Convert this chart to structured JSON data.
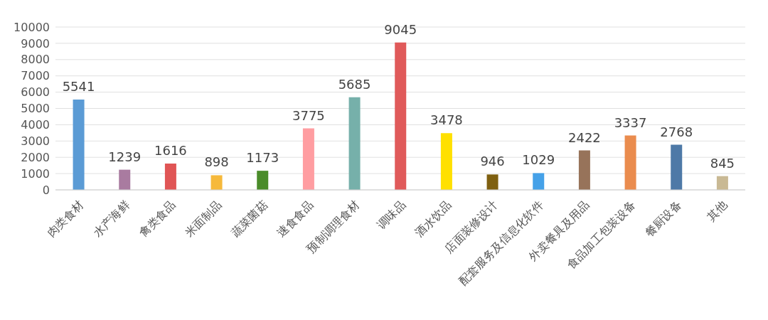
{
  "chart_data": {
    "type": "bar",
    "categories": [
      "肉类食材",
      "水产海鲜",
      "禽类食品",
      "米面制品",
      "蔬菜菌菇",
      "速食食品",
      "预制调理食材",
      "调味品",
      "酒水饮品",
      "店面装修设计",
      "配套服务及信息化软件",
      "外卖餐具及用品",
      "食品加工包装设备",
      "餐厨设备",
      "其他"
    ],
    "values": [
      5541,
      1239,
      1616,
      898,
      1173,
      3775,
      5685,
      9045,
      3478,
      946,
      1029,
      2422,
      3337,
      2768,
      845
    ],
    "colors": [
      "#5b9bd5",
      "#a97ba0",
      "#e05555",
      "#f6b93b",
      "#4a8c2a",
      "#ff9da1",
      "#76b0aa",
      "#e05a5a",
      "#ffe000",
      "#7f6010",
      "#45a1e8",
      "#97735a",
      "#ea8c4e",
      "#4e79a7",
      "#c9b994"
    ],
    "ylim": [
      0,
      10000
    ],
    "yticks": [
      0,
      1000,
      2000,
      3000,
      4000,
      5000,
      6000,
      7000,
      8000,
      9000,
      10000
    ],
    "grid": "y",
    "data_labels": true
  }
}
